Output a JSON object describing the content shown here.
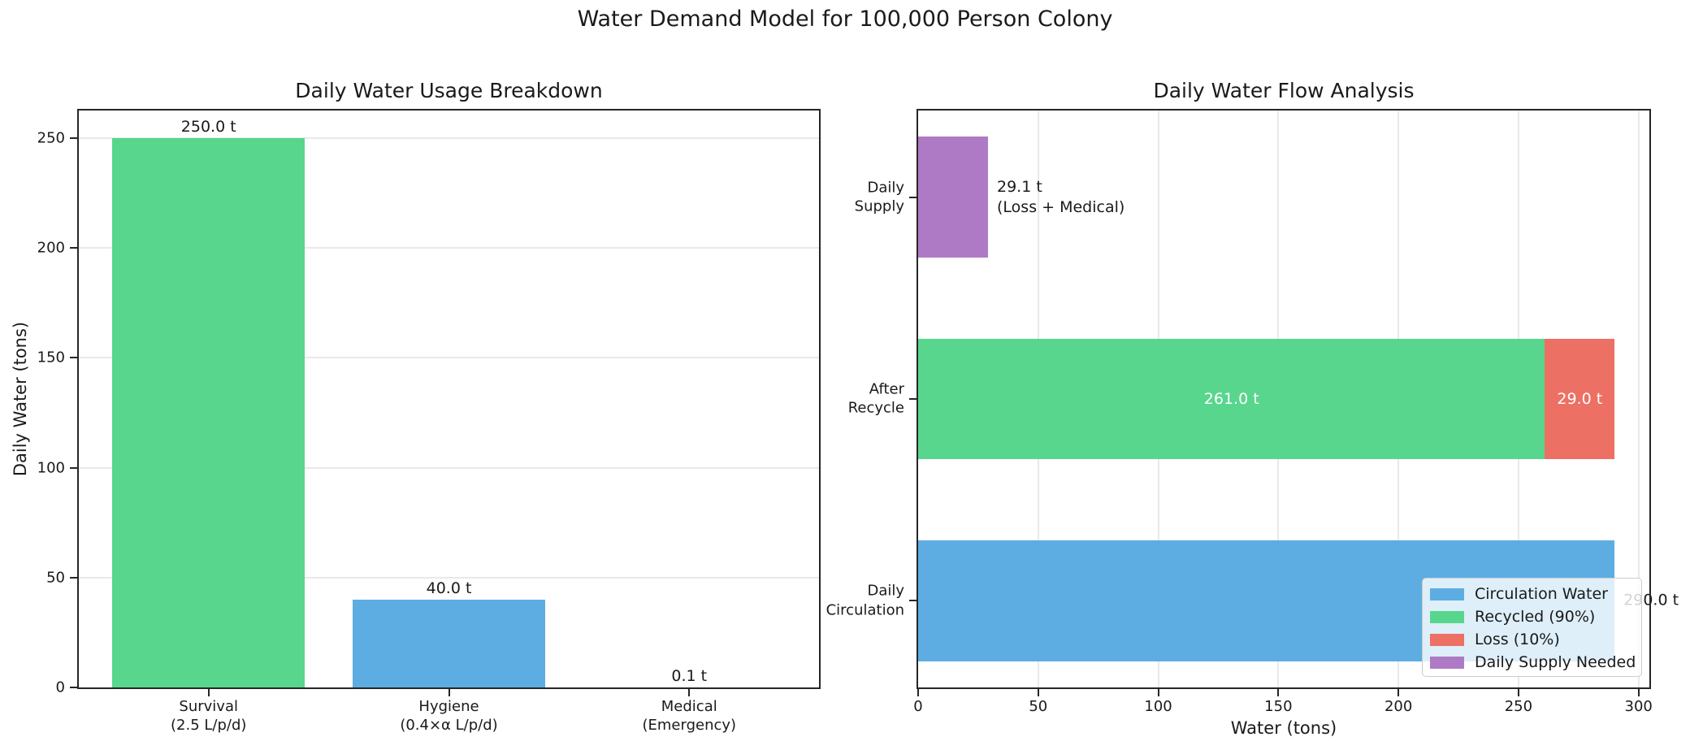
{
  "figure": {
    "suptitle": "Water Demand Model for 100,000 Person Colony",
    "background": "#ffffff"
  },
  "chart_data": [
    {
      "type": "bar",
      "title": "Daily Water Usage Breakdown",
      "xlabel": "",
      "ylabel": "Daily Water (tons)",
      "categories": [
        "Survival\n(2.5 L/p/d)",
        "Hygiene\n(0.4×α L/p/d)",
        "Medical\n(Emergency)"
      ],
      "values": [
        250.0,
        40.0,
        0.1
      ],
      "bar_labels": [
        "250.0 t",
        "40.0 t",
        "0.1 t"
      ],
      "bar_colors": [
        "#58D68D",
        "#5DADE2",
        "#EC7063"
      ],
      "yticks": [
        0,
        50,
        100,
        150,
        200,
        250
      ],
      "ylim": [
        0,
        262.5
      ],
      "grid": "horizontal gridlines, light gray",
      "legend": "none"
    },
    {
      "type": "barh",
      "title": "Daily Water Flow Analysis",
      "xlabel": "Water (tons)",
      "ylabel": "",
      "xticks": [
        0,
        50,
        100,
        150,
        200,
        250,
        300
      ],
      "xlim": [
        0,
        304.5
      ],
      "grid": "vertical gridlines, light gray",
      "rows": [
        {
          "category": "Daily\nSupply",
          "segments": [
            {
              "series": "Daily Supply Needed",
              "value": 29.1,
              "color": "#AF7AC5"
            }
          ],
          "annotation": "29.1 t\n(Loss + Medical)"
        },
        {
          "category": "After\nRecycle",
          "segments": [
            {
              "series": "Recycled (90%)",
              "value": 261.0,
              "color": "#58D68D",
              "label": "261.0 t"
            },
            {
              "series": "Loss (10%)",
              "value": 29.0,
              "color": "#EC7063",
              "label": "29.0 t"
            }
          ],
          "annotation": ""
        },
        {
          "category": "Daily\nCirculation",
          "segments": [
            {
              "series": "Circulation Water",
              "value": 290.0,
              "color": "#5DADE2"
            }
          ],
          "annotation": "290.0 t"
        }
      ],
      "legend": {
        "location": "lower right",
        "entries": [
          {
            "label": "Circulation Water",
            "color": "#5DADE2"
          },
          {
            "label": "Recycled (90%)",
            "color": "#58D68D"
          },
          {
            "label": "Loss (10%)",
            "color": "#EC7063"
          },
          {
            "label": "Daily Supply Needed",
            "color": "#AF7AC5"
          }
        ]
      }
    }
  ],
  "colors": {
    "grid": "#e9e9e9",
    "spine": "#262626",
    "text": "#1a1a1a",
    "in_bar_text": "#ffffff",
    "background": "#ffffff"
  }
}
